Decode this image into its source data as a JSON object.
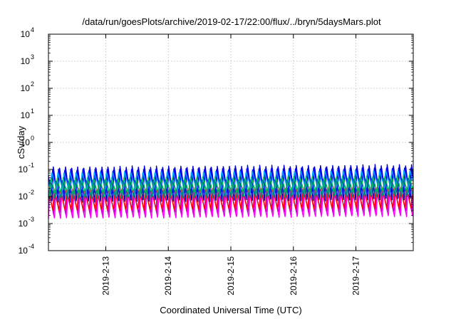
{
  "chart_data": {
    "type": "line",
    "title": "/data/run/goesPlots/archive/2019-02-17/22:00/flux/../bryn/5daysMars.plot",
    "xlabel": "Coordinated Universal Time (UTC)",
    "ylabel": "cSv/day",
    "yscale": "log",
    "ylim": [
      0.0001,
      10000
    ],
    "xlim": [
      "2019-02-12T02:00",
      "2019-02-17T22:00"
    ],
    "x_ticks": [
      "2019-2-13",
      "2019-2-14",
      "2019-2-15",
      "2019-2-16",
      "2019-2-17"
    ],
    "y_ticks": [
      {
        "base": "10",
        "exp": "-4"
      },
      {
        "base": "10",
        "exp": "-3"
      },
      {
        "base": "10",
        "exp": "-2"
      },
      {
        "base": "10",
        "exp": "-1"
      },
      {
        "base": "10",
        "exp": "0"
      },
      {
        "base": "10",
        "exp": "1"
      },
      {
        "base": "10",
        "exp": "2"
      },
      {
        "base": "10",
        "exp": "3"
      },
      {
        "base": "10",
        "exp": "4"
      }
    ],
    "grid": true,
    "cycle_hours": 2.33,
    "series": [
      {
        "color": "#ff00ff",
        "peak": 0.012,
        "trough": 0.0015
      },
      {
        "color": "#cc00cc",
        "peak": 0.016,
        "trough": 0.0022
      },
      {
        "color": "#ff0000",
        "peak": 0.02,
        "trough": 0.003
      },
      {
        "color": "#0000cc",
        "peak": 0.13,
        "trough": 0.006
      },
      {
        "color": "#0000ff",
        "peak": 0.1,
        "trough": 0.012
      },
      {
        "color": "#00aaff",
        "peak": 0.08,
        "trough": 0.018
      },
      {
        "color": "#00cc66",
        "peak": 0.05,
        "trough": 0.01
      },
      {
        "color": "#008888",
        "peak": 0.04,
        "trough": 0.008
      }
    ]
  }
}
